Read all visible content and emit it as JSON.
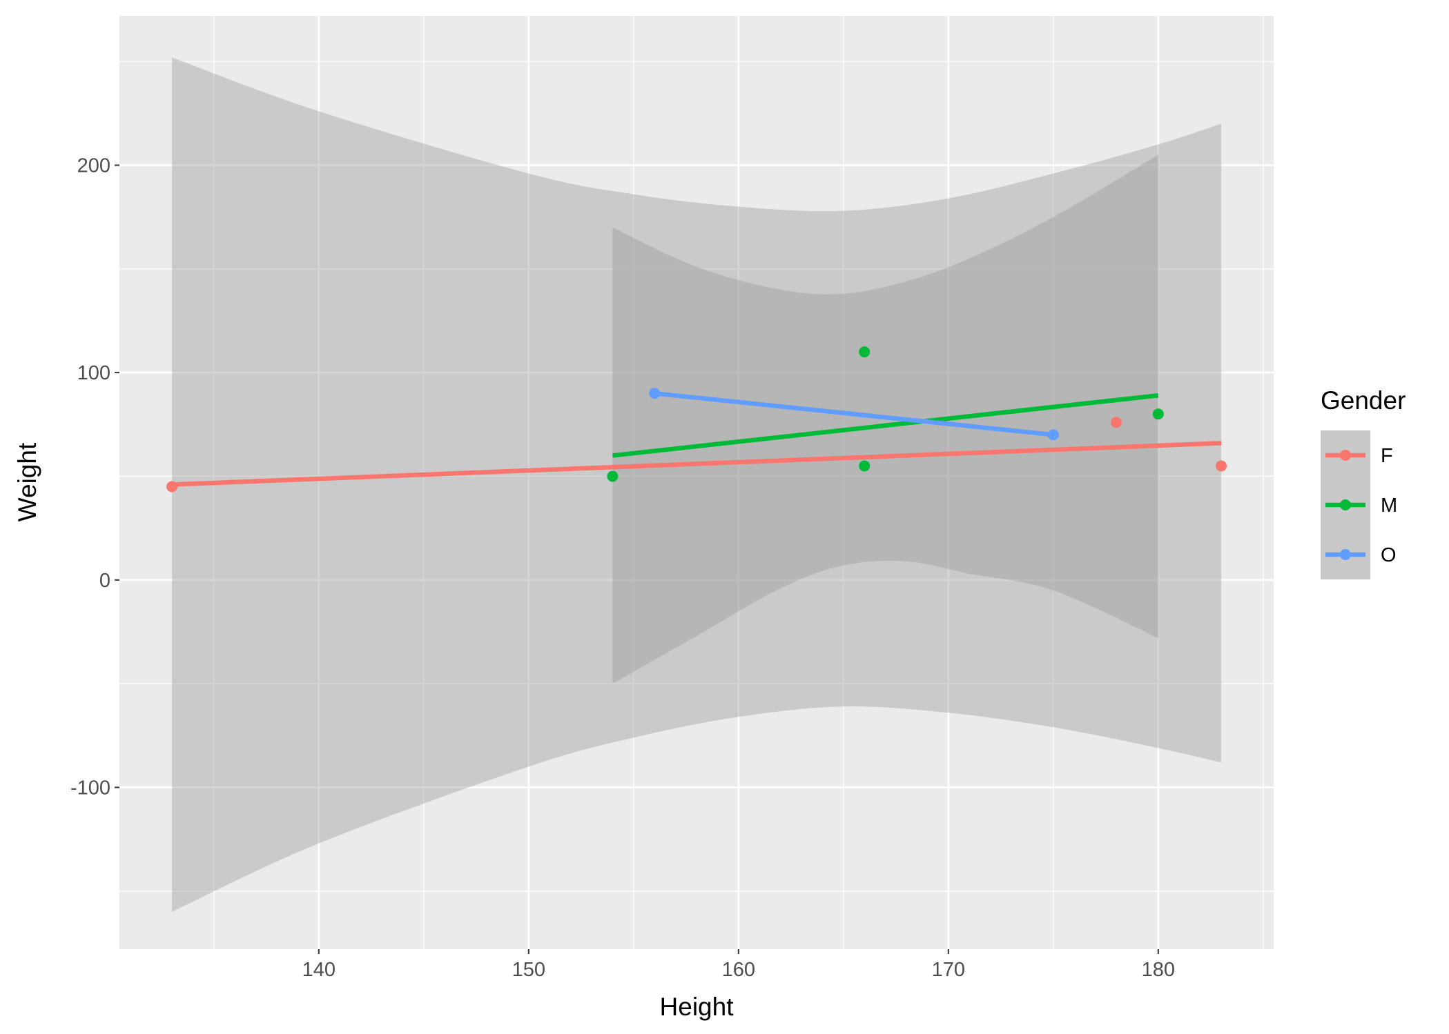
{
  "chart_data": {
    "type": "scatter",
    "xlabel": "Height",
    "ylabel": "Weight",
    "xlim": [
      130.5,
      185.5
    ],
    "ylim": [
      -178,
      272
    ],
    "x_ticks": [
      140,
      150,
      160,
      170,
      180
    ],
    "y_ticks": [
      -100,
      0,
      100,
      200
    ],
    "x_tick_labels": [
      "140",
      "150",
      "160",
      "170",
      "180"
    ],
    "y_tick_labels": [
      "-100",
      "0",
      "100",
      "200"
    ],
    "grid": true,
    "legend": {
      "title": "Gender",
      "position": "right",
      "entries": [
        "F",
        "M",
        "O"
      ]
    },
    "series": [
      {
        "name": "F",
        "color": "#F8766D",
        "points": [
          {
            "x": 133,
            "y": 45
          },
          {
            "x": 178,
            "y": 76
          },
          {
            "x": 183,
            "y": 55
          }
        ],
        "fit_line": [
          {
            "x": 133,
            "y": 46
          },
          {
            "x": 183,
            "y": 66
          }
        ],
        "ci_band": [
          {
            "x": 133,
            "lower": -160,
            "upper": 252
          },
          {
            "x": 140,
            "lower": -127,
            "upper": 226
          },
          {
            "x": 150,
            "lower": -90,
            "upper": 196
          },
          {
            "x": 155,
            "lower": -76,
            "upper": 186
          },
          {
            "x": 160,
            "lower": -66,
            "upper": 180
          },
          {
            "x": 165,
            "lower": -61,
            "upper": 178
          },
          {
            "x": 170,
            "lower": -64,
            "upper": 184
          },
          {
            "x": 175,
            "lower": -71,
            "upper": 196
          },
          {
            "x": 180,
            "lower": -81,
            "upper": 210
          },
          {
            "x": 183,
            "lower": -88,
            "upper": 220
          }
        ]
      },
      {
        "name": "M",
        "color": "#00BA38",
        "points": [
          {
            "x": 154,
            "y": 50
          },
          {
            "x": 166,
            "y": 110
          },
          {
            "x": 166,
            "y": 55
          },
          {
            "x": 180,
            "y": 80
          }
        ],
        "fit_line": [
          {
            "x": 154,
            "y": 60
          },
          {
            "x": 180,
            "y": 89
          }
        ],
        "ci_band": [
          {
            "x": 154,
            "lower": -50,
            "upper": 170
          },
          {
            "x": 158,
            "lower": -27,
            "upper": 151
          },
          {
            "x": 162,
            "lower": -4,
            "upper": 140
          },
          {
            "x": 165,
            "lower": 7,
            "upper": 138
          },
          {
            "x": 168,
            "lower": 9,
            "upper": 144
          },
          {
            "x": 171,
            "lower": 3,
            "upper": 155
          },
          {
            "x": 175,
            "lower": -5,
            "upper": 175
          },
          {
            "x": 180,
            "lower": -28,
            "upper": 205
          }
        ]
      },
      {
        "name": "O",
        "color": "#619CFF",
        "points": [
          {
            "x": 156,
            "y": 90
          },
          {
            "x": 175,
            "y": 70
          }
        ],
        "fit_line": [
          {
            "x": 156,
            "y": 90
          },
          {
            "x": 175,
            "y": 70
          }
        ]
      }
    ]
  }
}
